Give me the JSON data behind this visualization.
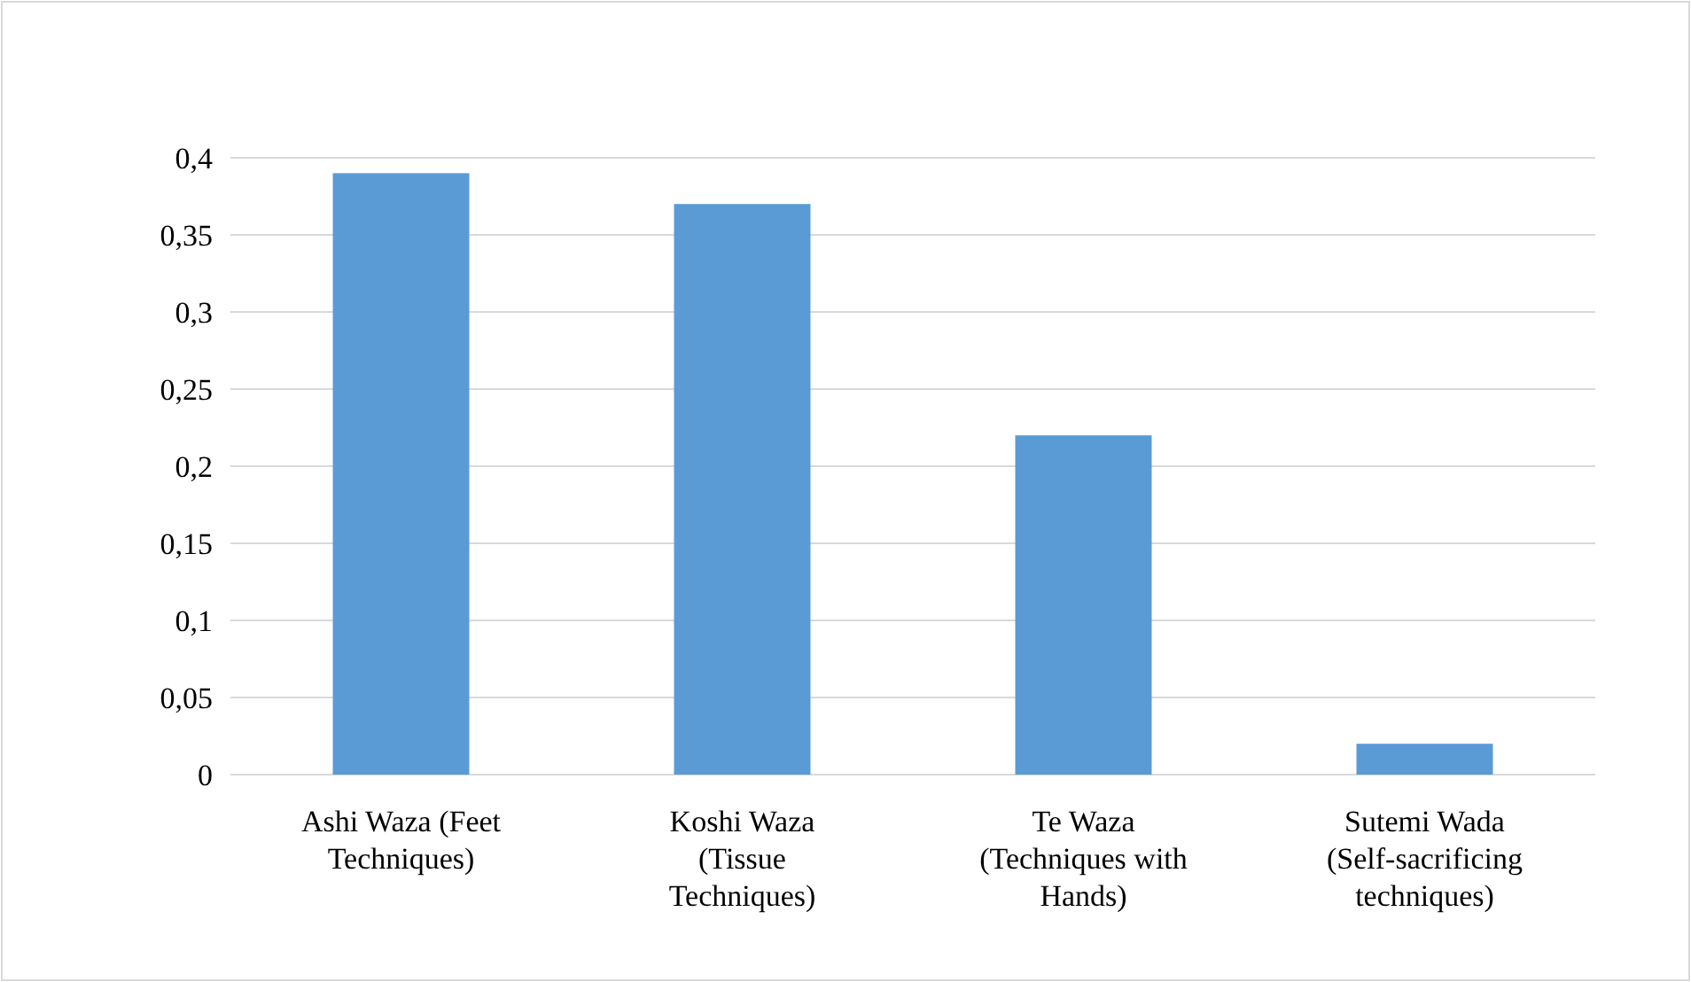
{
  "chart_data": {
    "type": "bar",
    "categories": [
      "Ashi Waza (Feet Techniques)",
      "Koshi Waza (Tissue Techniques)",
      "Te Waza (Techniques with Hands)",
      "Sutemi Wada (Self-sacrificing techniques)"
    ],
    "values": [
      0.39,
      0.37,
      0.22,
      0.02
    ],
    "color": "#5b9bd5",
    "ylim": [
      0,
      0.4
    ],
    "yticks": [
      {
        "value": 0,
        "label": "0"
      },
      {
        "value": 0.05,
        "label": "0,05"
      },
      {
        "value": 0.1,
        "label": "0,1"
      },
      {
        "value": 0.15,
        "label": "0,15"
      },
      {
        "value": 0.2,
        "label": "0,2"
      },
      {
        "value": 0.25,
        "label": "0,25"
      },
      {
        "value": 0.3,
        "label": "0,3"
      },
      {
        "value": 0.35,
        "label": "0,35"
      },
      {
        "value": 0.4,
        "label": "0,4"
      }
    ],
    "grid": "y"
  }
}
